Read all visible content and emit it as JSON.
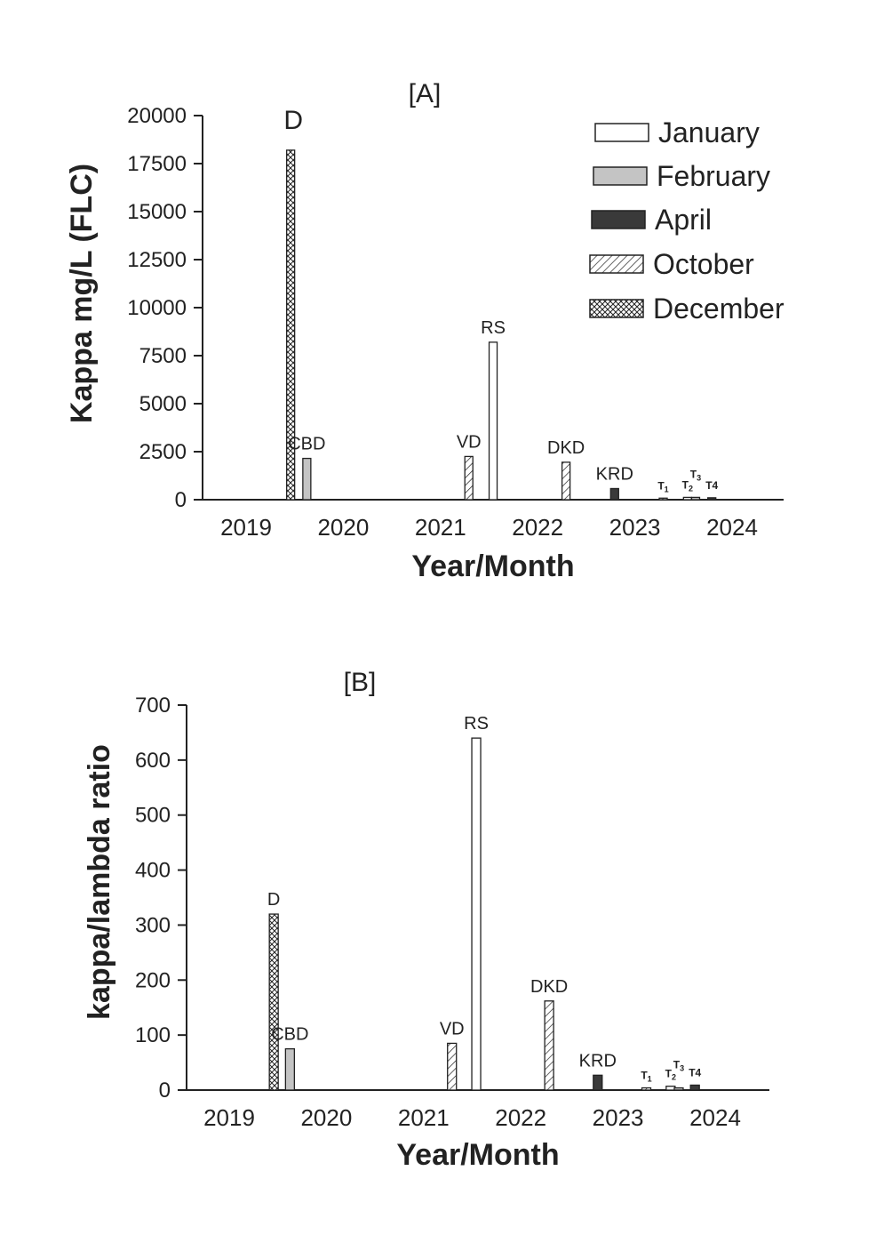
{
  "chart_data": [
    {
      "id": "A",
      "type": "bar",
      "title": "[A]",
      "ylabel": "Kappa mg/L (FLC)",
      "xlabel": "Year/Month",
      "ylim": [
        0,
        20000
      ],
      "yticks": [
        0,
        2500,
        5000,
        7500,
        10000,
        12500,
        15000,
        17500,
        20000
      ],
      "xtick_labels": [
        "2019",
        "2020",
        "2021",
        "2022",
        "2023",
        "2024"
      ],
      "bars": [
        {
          "label": "D",
          "year": 2019,
          "month": "December",
          "value": 18200
        },
        {
          "label": "CBD",
          "year": 2020,
          "month": "February",
          "value": 2150
        },
        {
          "label": "VD",
          "year": 2021,
          "month": "October",
          "value": 2250
        },
        {
          "label": "RS",
          "year": 2022,
          "month": "January",
          "value": 8200
        },
        {
          "label": "DKD",
          "year": 2022,
          "month": "October",
          "value": 1950
        },
        {
          "label": "KRD",
          "year": 2023,
          "month": "April",
          "value": 580
        },
        {
          "label": "T1",
          "year": 2023,
          "month": "October",
          "value": 80
        },
        {
          "label": "T2",
          "year": 2024,
          "month": "January",
          "value": 120
        },
        {
          "label": "T3",
          "year": 2024,
          "month": "February",
          "value": 120
        },
        {
          "label": "T4",
          "year": 2024,
          "month": "April",
          "value": 100
        }
      ],
      "legend": [
        "January",
        "February",
        "April",
        "October",
        "December"
      ],
      "legend_position": "top-right"
    },
    {
      "id": "B",
      "type": "bar",
      "title": "[B]",
      "ylabel": "kappa/lambda ratio",
      "xlabel": "Year/Month",
      "ylim": [
        0,
        700
      ],
      "yticks": [
        0,
        100,
        200,
        300,
        400,
        500,
        600,
        700
      ],
      "xtick_labels": [
        "2019",
        "2020",
        "2021",
        "2022",
        "2023",
        "2024"
      ],
      "bars": [
        {
          "label": "D",
          "year": 2019,
          "month": "December",
          "value": 320
        },
        {
          "label": "CBD",
          "year": 2020,
          "month": "February",
          "value": 75
        },
        {
          "label": "VD",
          "year": 2021,
          "month": "October",
          "value": 85
        },
        {
          "label": "RS",
          "year": 2022,
          "month": "January",
          "value": 640
        },
        {
          "label": "DKD",
          "year": 2022,
          "month": "October",
          "value": 162
        },
        {
          "label": "KRD",
          "year": 2023,
          "month": "April",
          "value": 27
        },
        {
          "label": "T1",
          "year": 2023,
          "month": "October",
          "value": 4
        },
        {
          "label": "T2",
          "year": 2024,
          "month": "January",
          "value": 7
        },
        {
          "label": "T3",
          "year": 2024,
          "month": "February",
          "value": 4
        },
        {
          "label": "T4",
          "year": 2024,
          "month": "April",
          "value": 9
        }
      ]
    }
  ]
}
